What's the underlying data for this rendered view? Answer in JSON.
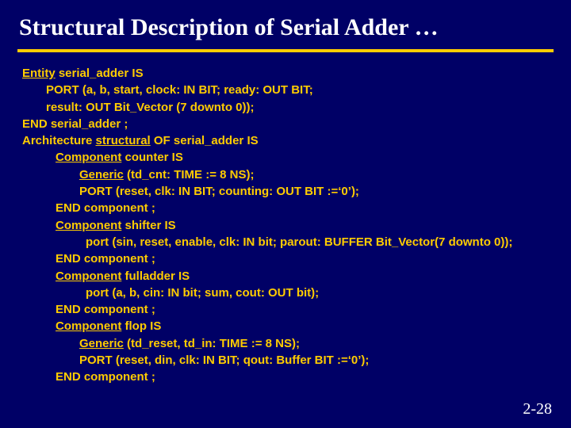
{
  "title": "Structural Description of Serial Adder …",
  "pagenum": "2-28",
  "c": {
    "l1a": "Entity",
    "l1b": " serial_adder IS",
    "l2": "PORT (a, b, start, clock: IN BIT; ready: OUT BIT;",
    "l3": "result: OUT Bit_Vector (7 downto 0));",
    "l4": "END serial_adder ;",
    "l5a": "Architecture ",
    "l5b": "structural",
    "l5c": "  OF serial_adder IS",
    "l6a": "Component",
    "l6b": " counter IS",
    "l7a": "Generic",
    "l7b": " (td_cnt: TIME := 8 NS);",
    "l8": "PORT (reset, clk: IN BIT; counting: OUT BIT :=‘0’);",
    "l9": "END component ;",
    "l10a": " Component",
    "l10b": " shifter IS",
    "l11": "port (sin, reset, enable, clk: IN bit;  parout: BUFFER Bit_Vector(7 downto 0));",
    "l12": "END component ;",
    "l13a": " Component",
    "l13b": " fulladder  IS",
    "l14": "port (a, b, cin: IN bit; sum, cout: OUT bit);",
    "l15": "END component ;",
    "l16a": " Component",
    "l16b": " flop IS",
    "l17a": "Generic",
    "l17b": " (td_reset, td_in: TIME := 8 NS);",
    "l18": "PORT (reset, din, clk: IN BIT; qout: Buffer BIT :=‘0’);",
    "l19": "END component ;"
  }
}
